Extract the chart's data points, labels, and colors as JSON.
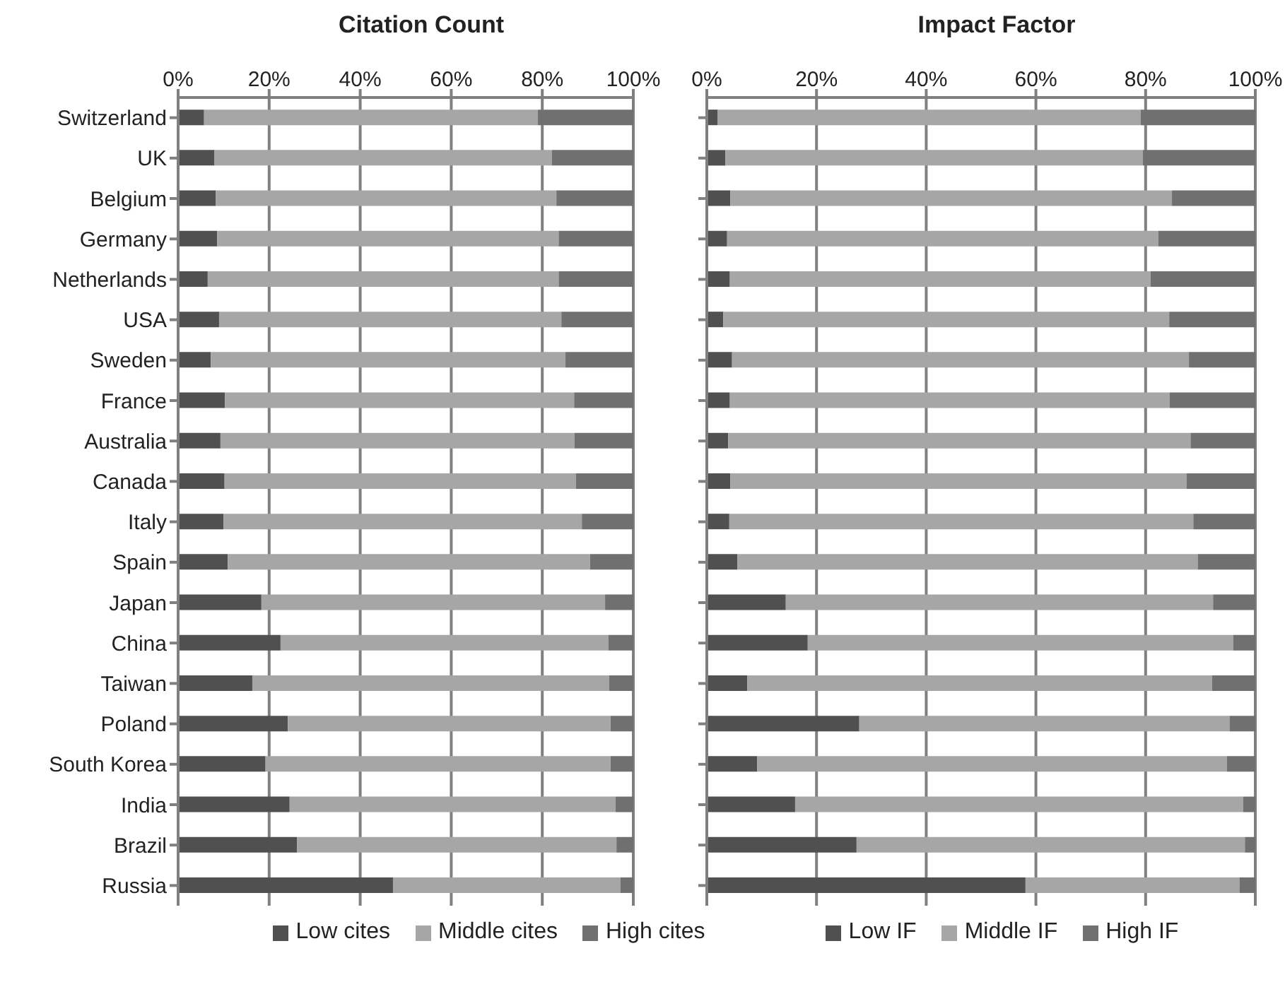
{
  "chart_data": [
    {
      "type": "bar",
      "title": "Citation Count",
      "orientation": "horizontal",
      "stacked": true,
      "grid": "x",
      "legend": "bottom",
      "categories": [
        "Switzerland",
        "UK",
        "Belgium",
        "Germany",
        "Netherlands",
        "USA",
        "Sweden",
        "France",
        "Australia",
        "Canada",
        "Italy",
        "Spain",
        "Japan",
        "China",
        "Taiwan",
        "Poland",
        "South Korea",
        "India",
        "Brazil",
        "Russia"
      ],
      "xlim": [
        0,
        100
      ],
      "xticks": [
        {
          "value": 0,
          "label": "0%"
        },
        {
          "value": 20,
          "label": "20%"
        },
        {
          "value": 40,
          "label": "40%"
        },
        {
          "value": 60,
          "label": "60%"
        },
        {
          "value": 80,
          "label": "80%"
        },
        {
          "value": 100,
          "label": "100%"
        }
      ],
      "series": [
        {
          "name": "Low cites",
          "color": "#505050",
          "values": [
            5.7,
            8,
            8.3,
            8.6,
            6.5,
            9,
            7.2,
            10.3,
            9.3,
            10.2,
            10,
            10.9,
            18.3,
            22.5,
            16.3,
            24.1,
            19.2,
            24.5,
            26.1,
            47.2
          ]
        },
        {
          "name": "Middle cites",
          "color": "#a6a6a6",
          "values": [
            73.3,
            74.1,
            74.8,
            75,
            77.1,
            75.2,
            77.9,
            76.7,
            77.8,
            77.2,
            78.7,
            79.6,
            75.5,
            72,
            78.4,
            70.9,
            75.8,
            71.6,
            70.2,
            50
          ]
        },
        {
          "name": "High cites",
          "color": "#707070",
          "values": [
            21,
            17.9,
            16.9,
            16.4,
            16.4,
            15.8,
            14.9,
            13,
            12.9,
            12.6,
            11.3,
            9.5,
            6.2,
            5.5,
            5.3,
            5,
            5,
            3.9,
            3.7,
            2.8
          ]
        }
      ]
    },
    {
      "type": "bar",
      "title": "Impact Factor",
      "orientation": "horizontal",
      "stacked": true,
      "grid": "x",
      "legend": "bottom",
      "categories": [
        null,
        null,
        null,
        null,
        null,
        null,
        null,
        null,
        null,
        null,
        null,
        null,
        null,
        null,
        null,
        null,
        null,
        null,
        null,
        null
      ],
      "xlim": [
        0,
        100
      ],
      "xticks": [
        {
          "value": 0,
          "label": "0%"
        },
        {
          "value": 20,
          "label": "20%"
        },
        {
          "value": 40,
          "label": "40%"
        },
        {
          "value": 60,
          "label": "60%"
        },
        {
          "value": 80,
          "label": "80%"
        },
        {
          "value": 100,
          "label": "100%"
        }
      ],
      "series": [
        {
          "name": "Low IF",
          "color": "#505050",
          "values": [
            2,
            3.4,
            4.3,
            3.7,
            4.2,
            3,
            4.6,
            4.2,
            3.9,
            4.3,
            4.1,
            5.6,
            14.4,
            18.4,
            7.4,
            27.8,
            9.2,
            16.1,
            27.3,
            58.1
          ]
        },
        {
          "name": "Middle IF",
          "color": "#a6a6a6",
          "values": [
            77.1,
            76.1,
            80.5,
            78.6,
            76.7,
            81.3,
            83.3,
            80.2,
            84.3,
            83.2,
            84.6,
            83.9,
            77.9,
            77.6,
            84.7,
            67.5,
            85.6,
            81.7,
            70.8,
            39
          ]
        },
        {
          "name": "High IF",
          "color": "#707070",
          "values": [
            20.9,
            20.5,
            15.2,
            17.7,
            19.1,
            15.7,
            12.1,
            15.6,
            11.8,
            12.5,
            11.3,
            10.5,
            7.7,
            4,
            7.9,
            4.7,
            5.2,
            2.2,
            1.9,
            2.9
          ]
        }
      ]
    }
  ]
}
